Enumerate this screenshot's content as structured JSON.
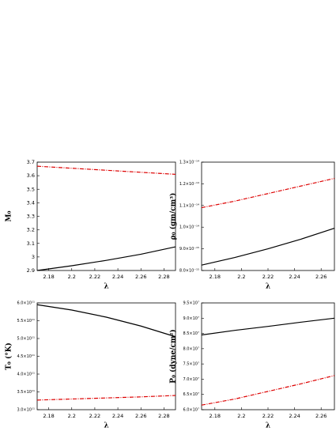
{
  "chart_data": [
    {
      "type": "line",
      "y_label": "M₀",
      "x_label": "λ",
      "x": [
        2.17,
        2.2,
        2.23,
        2.26,
        2.29
      ],
      "series": [
        {
          "color": "#000000",
          "dash": false,
          "values": [
            2.9,
            2.935,
            2.975,
            3.02,
            3.075
          ]
        },
        {
          "color": "#dd0000",
          "dash": true,
          "values": [
            3.67,
            3.655,
            3.64,
            3.625,
            3.61
          ]
        }
      ],
      "xlim": [
        2.17,
        2.29
      ],
      "xticks": [
        2.18,
        2.2,
        2.22,
        2.24,
        2.26,
        2.28
      ],
      "ylim": [
        2.9,
        3.7
      ],
      "yticks": [
        2.9,
        3,
        3.1,
        3.2,
        3.3,
        3.4,
        3.5,
        3.6,
        3.7
      ]
    },
    {
      "type": "line",
      "y_label": "ρ₀ (gm/cm³)",
      "x_label": "λ",
      "x": [
        2.17,
        2.195,
        2.22,
        2.245,
        2.27
      ],
      "series": [
        {
          "color": "#000000",
          "dash": false,
          "values": [
            8.25e-15,
            8.6e-15,
            9e-15,
            9.45e-15,
            9.95e-15
          ]
        },
        {
          "color": "#dd0000",
          "dash": true,
          "values": [
            1.09e-14,
            1.12e-14,
            1.155e-14,
            1.19e-14,
            1.225e-14
          ]
        }
      ],
      "xlim": [
        2.17,
        2.27
      ],
      "xticks": [
        2.18,
        2.2,
        2.22,
        2.24,
        2.26
      ],
      "ylim": [
        8e-15,
        1.3e-14
      ],
      "yticks": [
        {
          "value": 8e-15,
          "label": "8.0×10⁻¹⁵"
        },
        {
          "value": 9e-15,
          "label": "9.0×10⁻¹⁵"
        },
        {
          "value": 1e-14,
          "label": "1.0×10⁻¹⁴"
        },
        {
          "value": 1.1e-14,
          "label": "1.1×10⁻¹⁴"
        },
        {
          "value": 1.2e-14,
          "label": "1.2×10⁻¹⁴"
        },
        {
          "value": 1.3e-14,
          "label": "1.3×10⁻¹⁴"
        }
      ]
    },
    {
      "type": "line",
      "y_label": "T₀ (°K)",
      "x_label": "λ",
      "x": [
        2.17,
        2.2,
        2.23,
        2.26,
        2.29
      ],
      "series": [
        {
          "color": "#000000",
          "dash": false,
          "values": [
            595000000000.0,
            580000000000.0,
            560000000000.0,
            535000000000.0,
            505000000000.0
          ]
        },
        {
          "color": "#dd0000",
          "dash": true,
          "values": [
            327000000000.0,
            330000000000.0,
            333000000000.0,
            336000000000.0,
            340000000000.0
          ]
        }
      ],
      "xlim": [
        2.17,
        2.29
      ],
      "xticks": [
        2.18,
        2.2,
        2.22,
        2.24,
        2.26,
        2.28
      ],
      "ylim": [
        300000000000.0,
        600000000000.0
      ],
      "yticks": [
        {
          "value": 300000000000.0,
          "label": "3.0×10¹¹"
        },
        {
          "value": 350000000000.0,
          "label": "3.5×10¹¹"
        },
        {
          "value": 400000000000.0,
          "label": "4.0×10¹¹"
        },
        {
          "value": 450000000000.0,
          "label": "4.5×10¹¹"
        },
        {
          "value": 500000000000.0,
          "label": "5.0×10¹¹"
        },
        {
          "value": 550000000000.0,
          "label": "5.5×10¹¹"
        },
        {
          "value": 600000000000.0,
          "label": "6.0×10¹¹"
        }
      ]
    },
    {
      "type": "line",
      "y_label": "P₀ (dyne/cm²)",
      "x_label": "λ",
      "x": [
        2.17,
        2.195,
        2.22,
        2.245,
        2.27
      ],
      "series": [
        {
          "color": "#000000",
          "dash": false,
          "values": [
            84500000.0,
            86000000.0,
            87300000.0,
            88700000.0,
            90000000.0
          ]
        },
        {
          "color": "#dd0000",
          "dash": true,
          "values": [
            61500000.0,
            63500000.0,
            66000000.0,
            68500000.0,
            71200000.0
          ]
        }
      ],
      "xlim": [
        2.17,
        2.27
      ],
      "xticks": [
        2.18,
        2.2,
        2.22,
        2.24,
        2.26
      ],
      "ylim": [
        60000000.0,
        95000000.0
      ],
      "yticks": [
        {
          "value": 60000000.0,
          "label": "6.0×10⁷"
        },
        {
          "value": 65000000.0,
          "label": "6.5×10⁷"
        },
        {
          "value": 70000000.0,
          "label": "7.0×10⁷"
        },
        {
          "value": 75000000.0,
          "label": "7.5×10⁷"
        },
        {
          "value": 80000000.0,
          "label": "8.0×10⁷"
        },
        {
          "value": 85000000.0,
          "label": "8.5×10⁷"
        },
        {
          "value": 90000000.0,
          "label": "9.0×10⁷"
        },
        {
          "value": 95000000.0,
          "label": "9.5×10⁷"
        }
      ]
    }
  ]
}
